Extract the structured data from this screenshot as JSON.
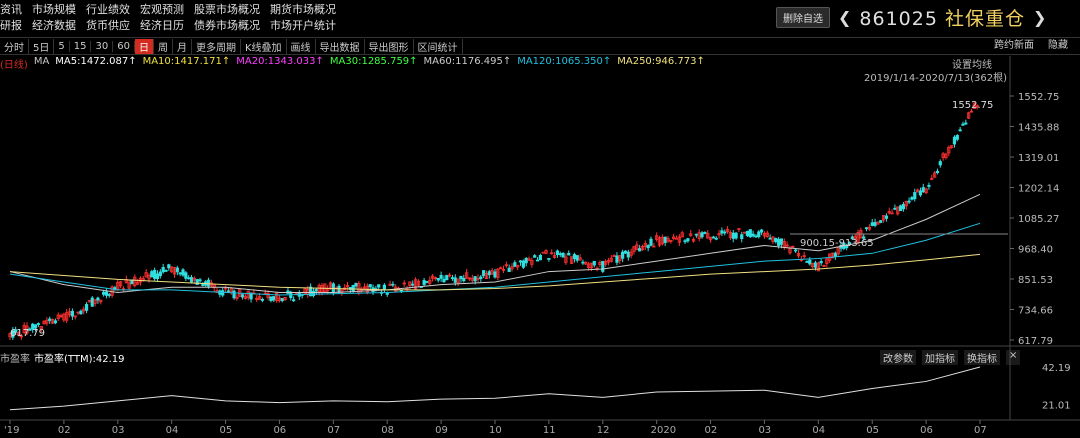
{
  "menu": {
    "row1": [
      "资讯",
      "市场规模",
      "行业绩效",
      "宏观预测",
      "股票市场概况",
      "期货市场概况"
    ],
    "row2": [
      "研报",
      "经济数据",
      "货币供应",
      "经济日历",
      "债券市场概况",
      "市场开户统计"
    ]
  },
  "header": {
    "delete_button": "删除自选",
    "code": "861025",
    "name": "社保重仓",
    "prev_icon": "chevron-left-icon",
    "next_icon": "chevron-right-icon"
  },
  "toolbar": {
    "items": [
      "分时",
      "5日",
      "5",
      "15",
      "30",
      "60",
      "日",
      "周",
      "月",
      "更多周期",
      "K线叠加",
      "画线",
      "导出数据",
      "导出图形",
      "区间统计"
    ],
    "active": "日",
    "right": [
      "跨约新面",
      "隐藏"
    ]
  },
  "ma_legend": {
    "prefix": "(日线)",
    "ma_label": "MA",
    "items": [
      {
        "text": "MA5:1472.087",
        "color": "#ffffff"
      },
      {
        "text": "MA10:1417.171",
        "color": "#f0e040"
      },
      {
        "text": "MA20:1343.033",
        "color": "#ff40ff"
      },
      {
        "text": "MA30:1285.759",
        "color": "#40ff40"
      },
      {
        "text": "MA60:1176.495",
        "color": "#cccccc"
      },
      {
        "text": "MA120:1065.350",
        "color": "#20c0e0"
      },
      {
        "text": "MA250:946.773",
        "color": "#f0e080"
      }
    ]
  },
  "main_legend": {
    "settings": "设置均线",
    "range": "2019/1/14-2020/7/13(362根)"
  },
  "sub_panel": {
    "label_left": "市盈率",
    "label": "市盈率(TTM):42.19",
    "buttons": [
      "改参数",
      "加指标",
      "换指标"
    ],
    "close": "×"
  },
  "chart_data": {
    "type": "candlestick",
    "main": {
      "y_ticks": [
        1552.75,
        1435.88,
        1319.01,
        1202.14,
        1085.27,
        968.4,
        851.53,
        734.66,
        617.79
      ],
      "ylim": [
        617.79,
        1552.75
      ],
      "annotations": {
        "high_label": "1552.75",
        "low_label": "617.79",
        "range_label": "900.15-913.65"
      },
      "series": [
        {
          "name": "K",
          "x": [
            "2019-01",
            "2019-02",
            "2019-03",
            "2019-04",
            "2019-05",
            "2019-06",
            "2019-07",
            "2019-08",
            "2019-09",
            "2019-10",
            "2019-11",
            "2019-12",
            "2020-01",
            "2020-02",
            "2020-03",
            "2020-04",
            "2020-05",
            "2020-06",
            "2020-07"
          ],
          "values": [
            640,
            700,
            820,
            890,
            800,
            780,
            820,
            810,
            850,
            870,
            950,
            900,
            1000,
            1020,
            1030,
            900,
            1050,
            1200,
            1552.75
          ]
        },
        {
          "name": "MA60",
          "values": [
            880,
            830,
            800,
            820,
            820,
            800,
            800,
            810,
            830,
            840,
            880,
            890,
            920,
            950,
            980,
            960,
            1000,
            1080,
            1176
          ]
        },
        {
          "name": "MA120",
          "values": [
            870,
            840,
            810,
            810,
            800,
            790,
            795,
            800,
            810,
            820,
            840,
            860,
            880,
            900,
            920,
            930,
            950,
            1000,
            1065
          ]
        },
        {
          "name": "MA250",
          "values": [
            880,
            865,
            850,
            840,
            830,
            820,
            815,
            810,
            810,
            815,
            825,
            840,
            855,
            870,
            880,
            890,
            905,
            925,
            946
          ]
        }
      ]
    },
    "sub": {
      "y_ticks": [
        42.19,
        21.01
      ],
      "values": [
        18,
        20,
        23,
        26,
        23,
        22,
        23,
        22.5,
        24,
        24.5,
        27,
        25,
        28,
        28.5,
        29,
        25,
        30,
        34,
        42.19
      ]
    },
    "x_ticks": [
      "'19",
      "02",
      "03",
      "04",
      "05",
      "06",
      "07",
      "08",
      "09",
      "10",
      "11",
      "12",
      "2020",
      "02",
      "03",
      "04",
      "05",
      "06",
      "07"
    ]
  }
}
